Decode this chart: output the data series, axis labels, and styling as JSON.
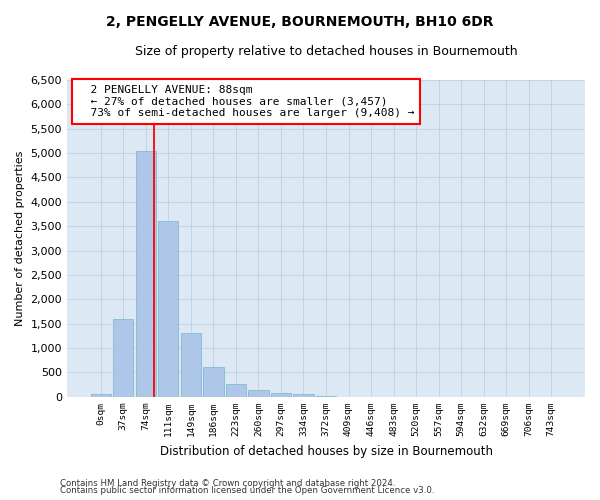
{
  "title": "2, PENGELLY AVENUE, BOURNEMOUTH, BH10 6DR",
  "subtitle": "Size of property relative to detached houses in Bournemouth",
  "xlabel": "Distribution of detached houses by size in Bournemouth",
  "ylabel": "Number of detached properties",
  "footnote1": "Contains HM Land Registry data © Crown copyright and database right 2024.",
  "footnote2": "Contains public sector information licensed under the Open Government Licence v3.0.",
  "bar_labels": [
    "0sqm",
    "37sqm",
    "74sqm",
    "111sqm",
    "149sqm",
    "186sqm",
    "223sqm",
    "260sqm",
    "297sqm",
    "334sqm",
    "372sqm",
    "409sqm",
    "446sqm",
    "483sqm",
    "520sqm",
    "557sqm",
    "594sqm",
    "632sqm",
    "669sqm",
    "706sqm",
    "743sqm"
  ],
  "bar_values": [
    50,
    1600,
    5050,
    3600,
    1300,
    620,
    270,
    130,
    80,
    50,
    10,
    5,
    0,
    0,
    0,
    0,
    0,
    0,
    0,
    0,
    0
  ],
  "bar_color": "#aec6e8",
  "bar_edge_color": "#7fbbd0",
  "vline_x": 2.35,
  "vline_color": "red",
  "annotation_text": "  2 PENGELLY AVENUE: 88sqm\n  ← 27% of detached houses are smaller (3,457)\n  73% of semi-detached houses are larger (9,408) →",
  "annotation_box_color": "white",
  "annotation_box_edge": "red",
  "ylim": [
    0,
    6500
  ],
  "yticks": [
    0,
    500,
    1000,
    1500,
    2000,
    2500,
    3000,
    3500,
    4000,
    4500,
    5000,
    5500,
    6000,
    6500
  ],
  "grid_color": "#c0d0e0",
  "bg_color": "#dce8f4",
  "title_fontsize": 10,
  "subtitle_fontsize": 9
}
